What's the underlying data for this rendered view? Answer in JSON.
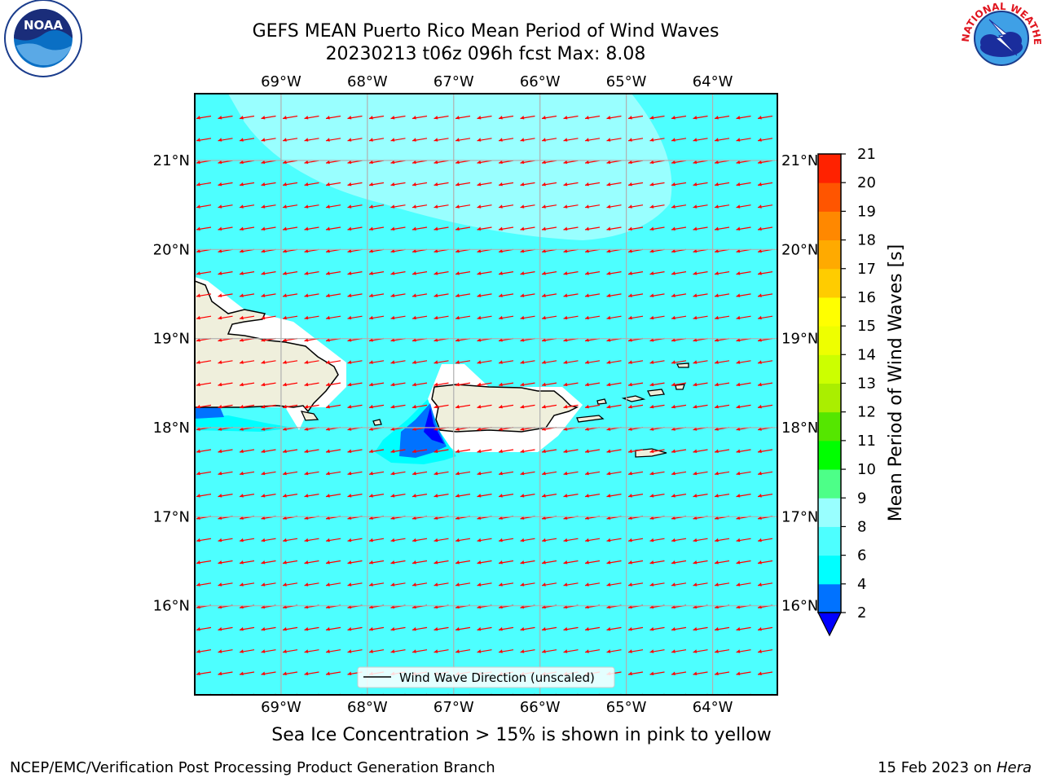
{
  "header": {
    "title_line1": "GEFS MEAN Puerto Rico Mean Period of Wind Waves",
    "title_line2": "20230213 t06z 096h fcst   Max: 8.08"
  },
  "logos": {
    "left": {
      "name": "noaa-logo",
      "text": "NOAA",
      "ring_text": "NATIONAL OCEANIC AND ATMOSPHERIC ADMINISTRATION · U.S. DEPARTMENT OF COMMERCE ·"
    },
    "right": {
      "name": "nws-logo",
      "ring_text": "NATIONAL WEATHER SERVICE"
    }
  },
  "map": {
    "lon_ticks": [
      "69°W",
      "68°W",
      "67°W",
      "66°W",
      "65°W",
      "64°W"
    ],
    "lat_ticks": [
      "21°N",
      "20°N",
      "19°N",
      "18°N",
      "17°N",
      "16°N"
    ],
    "lon_range": [
      -70.0,
      -63.25
    ],
    "lat_range": [
      15.0,
      21.75
    ],
    "legend_label": "Wind Wave Direction (unscaled)",
    "arrow_color": "#ff0000",
    "land_color": "#efefdc"
  },
  "colorbar": {
    "label": "Mean Period of Wind Waves [s]",
    "ticks": [
      "2",
      "4",
      "6",
      "8",
      "9",
      "10",
      "11",
      "12",
      "13",
      "14",
      "15",
      "16",
      "17",
      "18",
      "19",
      "20",
      "21"
    ],
    "colors": [
      "#0072ff",
      "#00ffff",
      "#4dffff",
      "#99ffff",
      "#4dff88",
      "#00ff00",
      "#55e600",
      "#aaee00",
      "#ccff00",
      "#eeff00",
      "#ffff00",
      "#ffcc00",
      "#ffaa00",
      "#ff8800",
      "#ff5500",
      "#ff2200",
      "#ff0000"
    ],
    "under_color": "#0000ff"
  },
  "note": "Sea Ice Concentration > 15% is shown in pink to yellow",
  "footer": {
    "left": "NCEP/EMC/Verification Post Processing Product Generation Branch",
    "right_date": "15 Feb 2023 on ",
    "right_machine": "Hera"
  }
}
